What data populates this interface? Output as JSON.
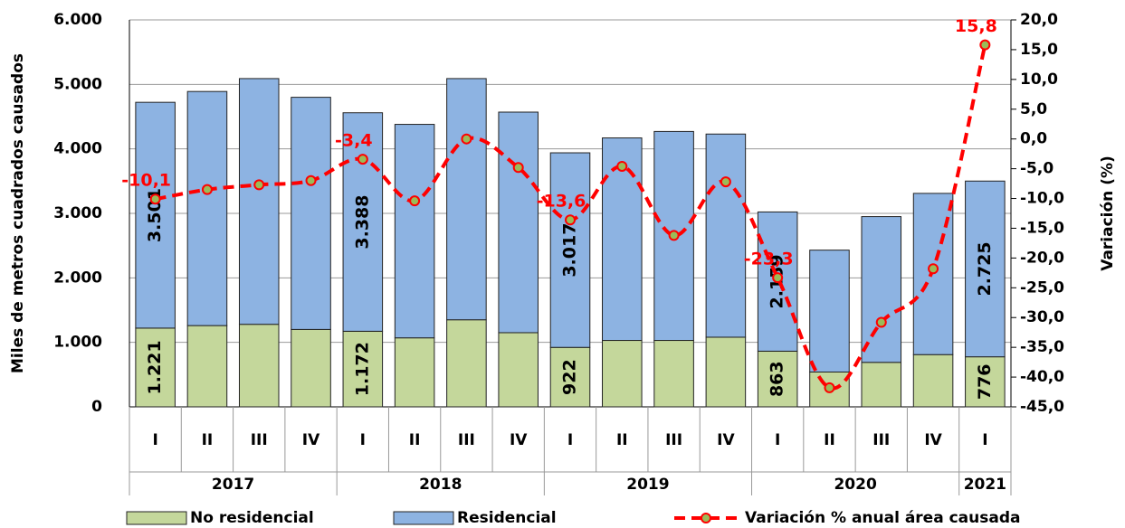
{
  "chart_data": {
    "type": "stacked_bar_line",
    "y_label": "Miles de metros cuadrados causados",
    "y2_label": "Variación   (%)",
    "categories": [
      "I",
      "II",
      "III",
      "IV",
      "I",
      "II",
      "III",
      "IV",
      "I",
      "II",
      "III",
      "IV",
      "I",
      "II",
      "III",
      "IV",
      "I"
    ],
    "x_groups": [
      "2017",
      "2017",
      "2017",
      "2017",
      "2018",
      "2018",
      "2018",
      "2018",
      "2019",
      "2019",
      "2019",
      "2019",
      "2020",
      "2020",
      "2020",
      "2020",
      "2021"
    ],
    "series": [
      {
        "name": "No residencial",
        "color": "#c4d79b",
        "kind": "bar",
        "values": [
          1221,
          1260,
          1280,
          1200,
          1172,
          1070,
          1350,
          1150,
          922,
          1030,
          1030,
          1080,
          863,
          540,
          690,
          810,
          776
        ],
        "value_labels": [
          "1.221",
          null,
          null,
          null,
          "1.172",
          null,
          null,
          null,
          "922",
          null,
          null,
          null,
          "863",
          null,
          null,
          null,
          "776"
        ]
      },
      {
        "name": "Residencial",
        "color": "#8db3e2",
        "kind": "bar",
        "values": [
          3501,
          3630,
          3810,
          3600,
          3388,
          3310,
          3740,
          3420,
          3017,
          3140,
          3240,
          3150,
          2159,
          1890,
          2260,
          2500,
          2725
        ],
        "value_labels": [
          "3.501",
          null,
          null,
          null,
          "3.388",
          null,
          null,
          null,
          "3.017",
          null,
          null,
          null,
          "2.159",
          null,
          null,
          null,
          "2.725"
        ]
      },
      {
        "name": "Variación % anual área causada",
        "color": "#ff0000",
        "marker_color": "#9bbb59",
        "kind": "line",
        "axis": "y2",
        "values": [
          -10.1,
          -8.5,
          -7.7,
          -7.0,
          -3.4,
          -10.4,
          0.0,
          -4.8,
          -13.6,
          -4.6,
          -16.2,
          -7.2,
          -23.3,
          -41.8,
          -30.8,
          -21.8,
          15.8
        ],
        "value_labels": [
          "-10,1",
          null,
          null,
          null,
          "-3,4",
          null,
          null,
          null,
          "-13,6",
          null,
          null,
          null,
          "-23,3",
          null,
          null,
          null,
          "15,8"
        ]
      }
    ],
    "ylim": [
      0,
      6000
    ],
    "yticks": [
      0,
      {
        "value": 1000,
        "label": "1.000"
      },
      {
        "value": 2000,
        "label": "2.000"
      },
      {
        "value": 3000,
        "label": "3.000"
      },
      {
        "value": 4000,
        "label": "4.000"
      },
      {
        "value": 5000,
        "label": "5.000"
      },
      {
        "value": 6000,
        "label": "6.000"
      }
    ],
    "y2lim": [
      -45,
      20
    ],
    "y2ticks": [
      {
        "value": -45,
        "label": "-45,0"
      },
      {
        "value": -40,
        "label": "-40,0"
      },
      {
        "value": -35,
        "label": "-35,0"
      },
      {
        "value": -30,
        "label": "-30,0"
      },
      {
        "value": -25,
        "label": "-25,0"
      },
      {
        "value": -20,
        "label": "-20,0"
      },
      {
        "value": -15,
        "label": "-15,0"
      },
      {
        "value": -10,
        "label": "-10,0"
      },
      {
        "value": -5,
        "label": "-5,0"
      },
      {
        "value": 0,
        "label": "0,0"
      },
      {
        "value": 5,
        "label": "5,0"
      },
      {
        "value": 10,
        "label": "10,0"
      },
      {
        "value": 15,
        "label": "15,0"
      },
      {
        "value": 20,
        "label": "20,0"
      }
    ],
    "grid": true,
    "legend": "bottom"
  }
}
